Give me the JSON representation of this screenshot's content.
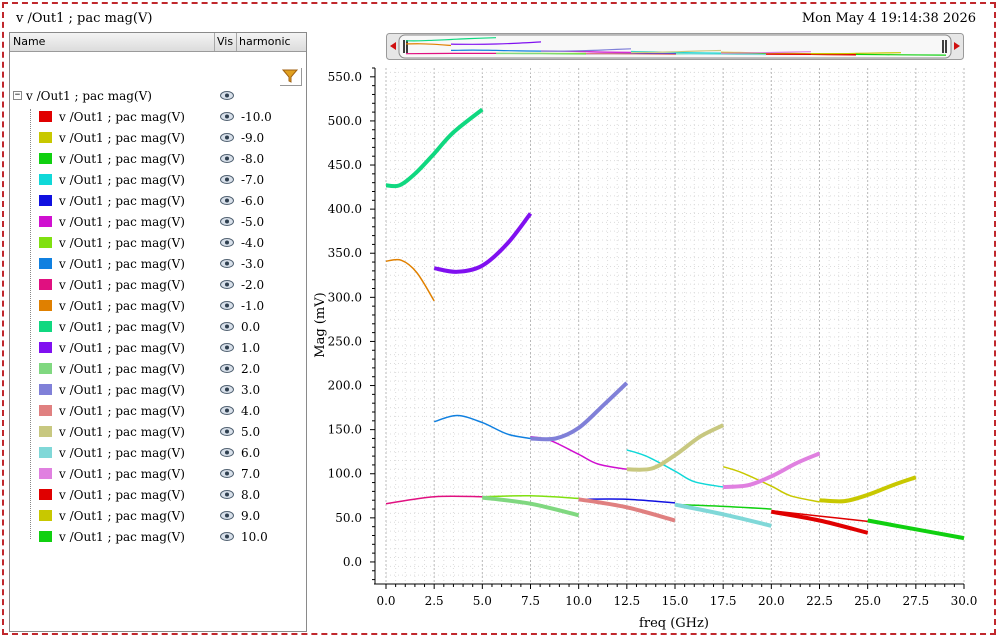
{
  "window": {
    "title": "v /Out1 ; pac mag(V)",
    "datetime": "Mon May 4 19:14:38 2026"
  },
  "panel": {
    "columns": [
      "Name",
      "Vis",
      "harmonic"
    ],
    "root_label": "v /Out1 ; pac mag(V)",
    "icons": {
      "filter": "filter-icon",
      "visibility": "eye-icon",
      "expander": "collapse-icon"
    },
    "rows": [
      {
        "name": "v /Out1 ; pac mag(V)",
        "harmonic": "-10.0",
        "color": "#e00000"
      },
      {
        "name": "v /Out1 ; pac mag(V)",
        "harmonic": "-9.0",
        "color": "#c8c800"
      },
      {
        "name": "v /Out1 ; pac mag(V)",
        "harmonic": "-8.0",
        "color": "#10d010"
      },
      {
        "name": "v /Out1 ; pac mag(V)",
        "harmonic": "-7.0",
        "color": "#10d8d8"
      },
      {
        "name": "v /Out1 ; pac mag(V)",
        "harmonic": "-6.0",
        "color": "#1010e0"
      },
      {
        "name": "v /Out1 ; pac mag(V)",
        "harmonic": "-5.0",
        "color": "#d010d0"
      },
      {
        "name": "v /Out1 ; pac mag(V)",
        "harmonic": "-4.0",
        "color": "#80e010"
      },
      {
        "name": "v /Out1 ; pac mag(V)",
        "harmonic": "-3.0",
        "color": "#1080e0"
      },
      {
        "name": "v /Out1 ; pac mag(V)",
        "harmonic": "-2.0",
        "color": "#e01080"
      },
      {
        "name": "v /Out1 ; pac mag(V)",
        "harmonic": "-1.0",
        "color": "#e08000"
      },
      {
        "name": "v /Out1 ; pac mag(V)",
        "harmonic": "0.0",
        "color": "#10d880"
      },
      {
        "name": "v /Out1 ; pac mag(V)",
        "harmonic": "1.0",
        "color": "#8010f0"
      },
      {
        "name": "v /Out1 ; pac mag(V)",
        "harmonic": "2.0",
        "color": "#80d880"
      },
      {
        "name": "v /Out1 ; pac mag(V)",
        "harmonic": "3.0",
        "color": "#8080d8"
      },
      {
        "name": "v /Out1 ; pac mag(V)",
        "harmonic": "4.0",
        "color": "#e08080"
      },
      {
        "name": "v /Out1 ; pac mag(V)",
        "harmonic": "5.0",
        "color": "#c8c880"
      },
      {
        "name": "v /Out1 ; pac mag(V)",
        "harmonic": "6.0",
        "color": "#80d8d8"
      },
      {
        "name": "v /Out1 ; pac mag(V)",
        "harmonic": "7.0",
        "color": "#e080e0"
      },
      {
        "name": "v /Out1 ; pac mag(V)",
        "harmonic": "8.0",
        "color": "#e00000"
      },
      {
        "name": "v /Out1 ; pac mag(V)",
        "harmonic": "9.0",
        "color": "#c8c800"
      },
      {
        "name": "v /Out1 ; pac mag(V)",
        "harmonic": "10.0",
        "color": "#10d010"
      }
    ]
  },
  "chart_data": {
    "type": "line",
    "xlabel": "freq (GHz)",
    "ylabel": "Mag (mV)",
    "xlim": [
      0,
      30
    ],
    "ylim": [
      -25,
      560
    ],
    "xticks": [
      "0.0",
      "2.5",
      "5.0",
      "7.5",
      "10.0",
      "12.5",
      "15.0",
      "17.5",
      "20.0",
      "22.5",
      "25.0",
      "27.5",
      "30.0"
    ],
    "yticks": [
      "0.0",
      "50.0",
      "100.0",
      "150.0",
      "200.0",
      "250.0",
      "300.0",
      "350.0",
      "400.0",
      "450.0",
      "500.0",
      "550.0"
    ],
    "grid": true,
    "series": [
      {
        "harmonic": "-10.0",
        "color": "#e00000",
        "width": 1.5,
        "x": [
          20,
          22.5,
          25
        ],
        "y": [
          58,
          52,
          46
        ]
      },
      {
        "harmonic": "-9.0",
        "color": "#c8c800",
        "width": 1.5,
        "x": [
          17.5,
          18.5,
          20,
          21,
          22.5
        ],
        "y": [
          108,
          101,
          86,
          75,
          68
        ]
      },
      {
        "harmonic": "-8.0",
        "color": "#10d010",
        "width": 1.5,
        "x": [
          15,
          17.5,
          20
        ],
        "y": [
          65,
          63,
          60
        ]
      },
      {
        "harmonic": "-7.0",
        "color": "#10d8d8",
        "width": 1.5,
        "x": [
          12.5,
          13.5,
          15,
          16,
          17.5
        ],
        "y": [
          127,
          120,
          103,
          91,
          85
        ]
      },
      {
        "harmonic": "-6.0",
        "color": "#1010e0",
        "width": 1.5,
        "x": [
          10,
          12.5,
          15
        ],
        "y": [
          71,
          71,
          67
        ]
      },
      {
        "harmonic": "-5.0",
        "color": "#d010d0",
        "width": 1.5,
        "x": [
          7.5,
          8.5,
          10,
          11,
          12.5
        ],
        "y": [
          142,
          138,
          122,
          111,
          105
        ]
      },
      {
        "harmonic": "-4.0",
        "color": "#80e010",
        "width": 1.5,
        "x": [
          5,
          7.5,
          10
        ],
        "y": [
          74,
          75,
          72
        ]
      },
      {
        "harmonic": "-3.0",
        "color": "#1080e0",
        "width": 1.5,
        "x": [
          2.5,
          3.7,
          5,
          6.3,
          7.5
        ],
        "y": [
          159,
          166,
          158,
          145,
          140
        ]
      },
      {
        "harmonic": "-2.0",
        "color": "#e01080",
        "width": 1.5,
        "x": [
          0,
          2.5,
          5
        ],
        "y": [
          66,
          74,
          74
        ]
      },
      {
        "harmonic": "-1.0",
        "color": "#e08000",
        "width": 1.5,
        "x": [
          0,
          0.8,
          1.6,
          2.5
        ],
        "y": [
          341,
          342,
          328,
          296
        ]
      },
      {
        "harmonic": "0.0",
        "color": "#10d880",
        "width": 4,
        "x": [
          0,
          0.7,
          1.5,
          2.5,
          3.5,
          5
        ],
        "y": [
          427,
          427,
          440,
          463,
          487,
          513
        ]
      },
      {
        "harmonic": "1.0",
        "color": "#8010f0",
        "width": 4,
        "x": [
          2.5,
          3.7,
          5,
          6.3,
          7.5
        ],
        "y": [
          333,
          329,
          336,
          361,
          395
        ]
      },
      {
        "harmonic": "2.0",
        "color": "#80d880",
        "width": 4,
        "x": [
          5,
          7.5,
          10
        ],
        "y": [
          73,
          66,
          53
        ]
      },
      {
        "harmonic": "3.0",
        "color": "#8080d8",
        "width": 4,
        "x": [
          7.5,
          8.8,
          10,
          11.3,
          12.5
        ],
        "y": [
          140,
          140,
          152,
          178,
          203
        ]
      },
      {
        "harmonic": "4.0",
        "color": "#e08080",
        "width": 4,
        "x": [
          10,
          12.5,
          15
        ],
        "y": [
          71,
          62,
          47
        ]
      },
      {
        "harmonic": "5.0",
        "color": "#c8c880",
        "width": 4,
        "x": [
          12.5,
          13.8,
          15,
          16.3,
          17.5
        ],
        "y": [
          105,
          106,
          121,
          142,
          155
        ]
      },
      {
        "harmonic": "6.0",
        "color": "#80d8d8",
        "width": 4,
        "x": [
          15,
          17.5,
          20
        ],
        "y": [
          65,
          54,
          41
        ]
      },
      {
        "harmonic": "7.0",
        "color": "#e080e0",
        "width": 4,
        "x": [
          17.5,
          18.8,
          20,
          21.3,
          22.5
        ],
        "y": [
          85,
          87,
          97,
          112,
          123
        ]
      },
      {
        "harmonic": "8.0",
        "color": "#e00000",
        "width": 4,
        "x": [
          20,
          22.5,
          25
        ],
        "y": [
          57,
          47,
          33
        ]
      },
      {
        "harmonic": "9.0",
        "color": "#c8c800",
        "width": 4,
        "x": [
          22.5,
          23.8,
          25,
          26.3,
          27.5
        ],
        "y": [
          70,
          69,
          76,
          87,
          96
        ]
      },
      {
        "harmonic": "10.0",
        "color": "#10d010",
        "width": 4,
        "x": [
          25,
          27.5,
          30
        ],
        "y": [
          47,
          37,
          27
        ]
      }
    ]
  }
}
